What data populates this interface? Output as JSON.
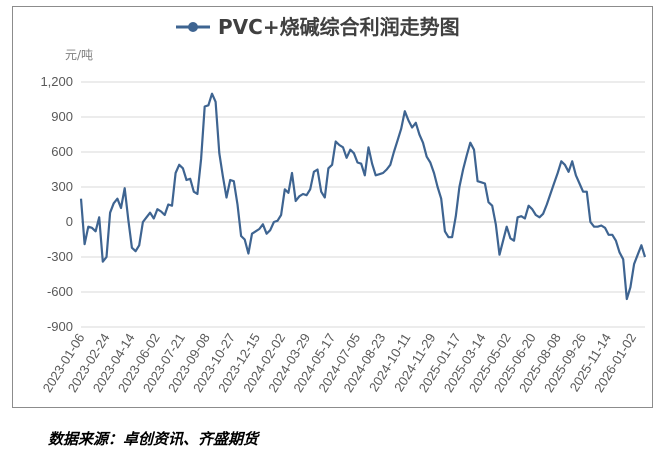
{
  "chart_data": {
    "type": "line",
    "title": "PVC+烧碱综合利润走势图",
    "unit_label": "元/吨",
    "ylim": [
      -900,
      1200
    ],
    "y_ticks": [
      "1,200",
      "900",
      "600",
      "300",
      "0",
      "-300",
      "-600",
      "-900"
    ],
    "y_tick_values": [
      1200,
      900,
      600,
      300,
      0,
      -300,
      -600,
      -900
    ],
    "x_tick_labels": [
      "2023-01-06",
      "2023-02-24",
      "2023-04-14",
      "2023-06-02",
      "2023-07-21",
      "2023-09-08",
      "2023-10-27",
      "2023-12-15",
      "2024-02-02",
      "2024-03-29",
      "2024-05-17",
      "2024-07-05",
      "2024-08-23",
      "2024-10-11",
      "2024-11-29",
      "2025-01-17",
      "2025-03-14",
      "2025-05-02",
      "2025-06-20",
      "2025-08-08",
      "2025-09-26",
      "2025-11-14",
      "2026-01-02"
    ],
    "grid": "horizontal",
    "legend": "top",
    "line_color": "#3e6491",
    "series": [
      {
        "name": "PVC+烧碱综合利润走势图",
        "values": [
          200,
          -190,
          -40,
          -50,
          -80,
          40,
          -340,
          -300,
          80,
          160,
          200,
          120,
          290,
          20,
          -220,
          -250,
          -200,
          0,
          40,
          80,
          30,
          110,
          90,
          60,
          150,
          140,
          420,
          490,
          460,
          360,
          370,
          260,
          240,
          540,
          990,
          1000,
          1100,
          1030,
          590,
          390,
          210,
          360,
          350,
          150,
          -120,
          -150,
          -270,
          -100,
          -80,
          -60,
          -20,
          -100,
          -70,
          0,
          10,
          60,
          280,
          250,
          420,
          180,
          220,
          240,
          230,
          280,
          430,
          450,
          260,
          210,
          460,
          490,
          690,
          660,
          640,
          550,
          620,
          590,
          510,
          500,
          400,
          640,
          500,
          400,
          410,
          420,
          450,
          490,
          600,
          700,
          800,
          950,
          870,
          810,
          850,
          750,
          680,
          560,
          510,
          420,
          300,
          200,
          -80,
          -130,
          -130,
          50,
          300,
          450,
          570,
          680,
          620,
          350,
          340,
          330,
          170,
          140,
          -20,
          -280,
          -160,
          -40,
          -140,
          -160,
          40,
          50,
          30,
          140,
          110,
          60,
          40,
          70,
          150,
          240,
          330,
          420,
          520,
          490,
          430,
          520,
          400,
          330,
          260,
          260,
          0,
          -40,
          -40,
          -30,
          -50,
          -110,
          -110,
          -160,
          -260,
          -320,
          -660,
          -560,
          -360,
          -280,
          -200,
          -300
        ]
      }
    ]
  },
  "source_note": "数据来源：卓创资讯、齐盛期货"
}
